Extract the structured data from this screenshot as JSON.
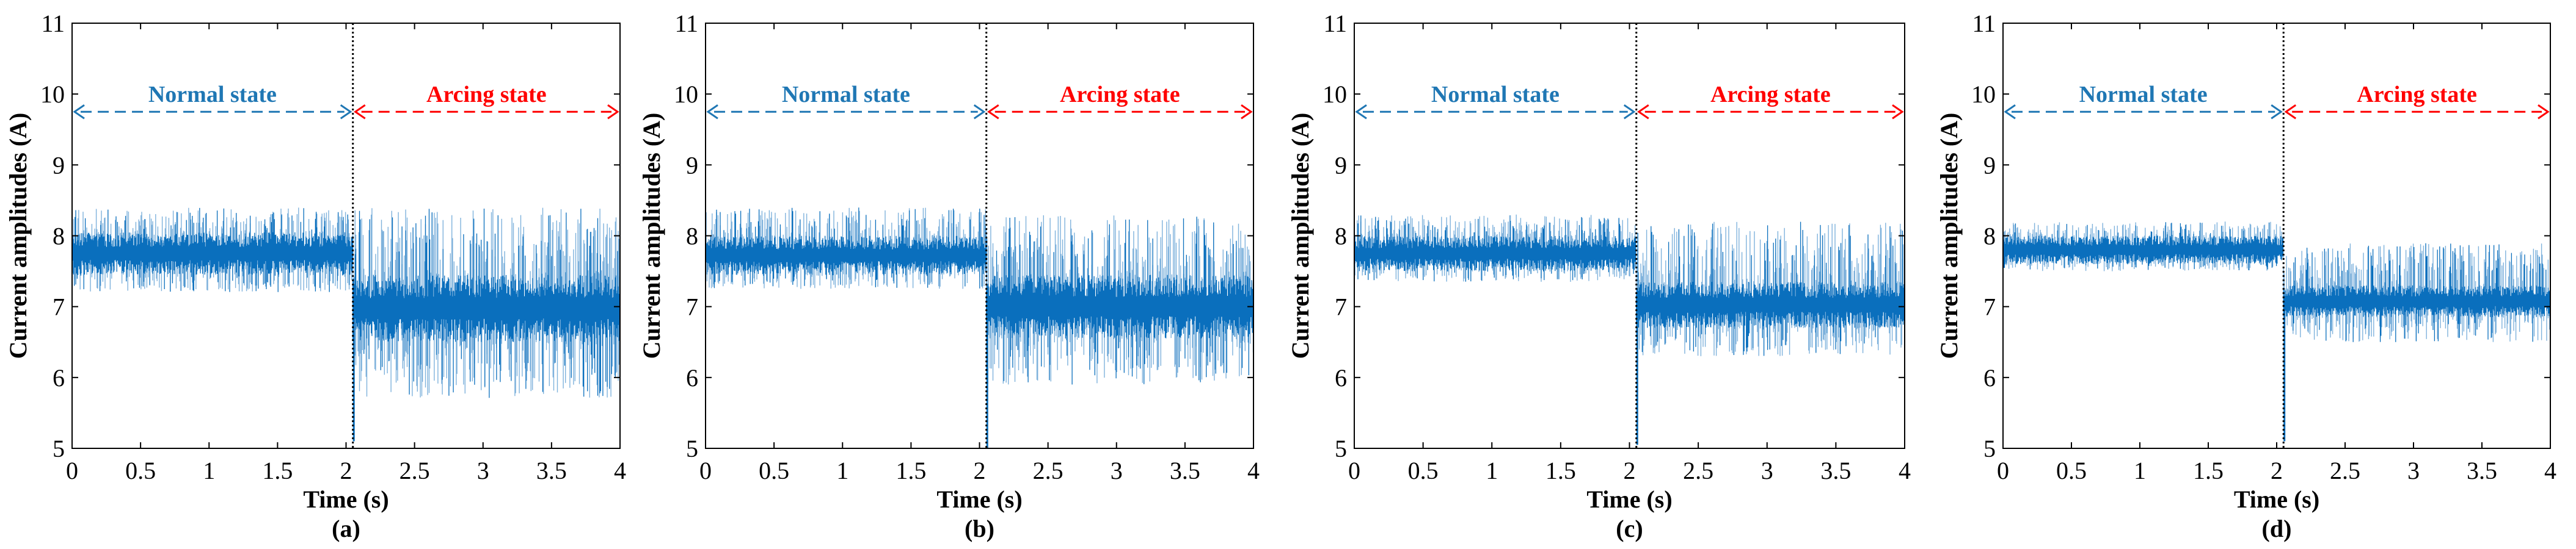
{
  "colors": {
    "signal": "#0a6fbd",
    "signal_light": "#7fb2dc",
    "normal_annotation": "#1f77b4",
    "arcing_annotation": "#ff0000",
    "divider": "#000000",
    "axis": "#000000"
  },
  "chart_data": [
    {
      "type": "line",
      "panel_label": "(a)",
      "xlabel": "Time (s)",
      "ylabel": "Current amplitudes (A)",
      "xlim": [
        0,
        4
      ],
      "ylim": [
        5,
        11
      ],
      "xticks": [
        0,
        0.5,
        1,
        1.5,
        2,
        2.5,
        3,
        3.5,
        4
      ],
      "xtick_labels": [
        "0",
        "0.5",
        "1",
        "1.5",
        "2",
        "2.5",
        "3",
        "3.5",
        "4"
      ],
      "yticks": [
        5,
        6,
        7,
        8,
        9,
        10,
        11
      ],
      "ytick_labels": [
        "5",
        "6",
        "7",
        "8",
        "9",
        "10",
        "11"
      ],
      "grid": false,
      "transition_time": 2.05,
      "annotations": [
        {
          "text": "Normal state",
          "x_start": 0,
          "x_end": 2.05,
          "y": 9.75,
          "color": "#1f77b4"
        },
        {
          "text": "Arcing state",
          "x_start": 2.05,
          "x_end": 4,
          "y": 9.75,
          "color": "#ff0000"
        }
      ],
      "series": [
        {
          "segment": "normal",
          "x_range": [
            0,
            2.05
          ],
          "center": 7.75,
          "core_band": [
            7.45,
            8.05
          ],
          "envelope": [
            7.2,
            8.4
          ]
        },
        {
          "segment": "arcing",
          "x_range": [
            2.05,
            4
          ],
          "center": 7.0,
          "core_band": [
            6.5,
            7.45
          ],
          "envelope": [
            5.7,
            8.4
          ],
          "dip_at_transition": 5.1
        }
      ]
    },
    {
      "type": "line",
      "panel_label": "(b)",
      "xlabel": "Time (s)",
      "ylabel": "Current amplitudes (A)",
      "xlim": [
        0,
        4
      ],
      "ylim": [
        5,
        11
      ],
      "xticks": [
        0,
        0.5,
        1,
        1.5,
        2,
        2.5,
        3,
        3.5,
        4
      ],
      "xtick_labels": [
        "0",
        "0.5",
        "1",
        "1.5",
        "2",
        "2.5",
        "3",
        "3.5",
        "4"
      ],
      "yticks": [
        5,
        6,
        7,
        8,
        9,
        10,
        11
      ],
      "ytick_labels": [
        "5",
        "6",
        "7",
        "8",
        "9",
        "10",
        "11"
      ],
      "grid": false,
      "transition_time": 2.05,
      "annotations": [
        {
          "text": "Normal state",
          "x_start": 0,
          "x_end": 2.05,
          "y": 9.75,
          "color": "#1f77b4"
        },
        {
          "text": "Arcing state",
          "x_start": 2.05,
          "x_end": 4,
          "y": 9.75,
          "color": "#ff0000"
        }
      ],
      "series": [
        {
          "segment": "normal",
          "x_range": [
            0,
            2.05
          ],
          "center": 7.7,
          "core_band": [
            7.45,
            8.0
          ],
          "envelope": [
            7.25,
            8.4
          ]
        },
        {
          "segment": "arcing",
          "x_range": [
            2.05,
            4
          ],
          "center": 7.0,
          "core_band": [
            6.55,
            7.45
          ],
          "envelope": [
            5.9,
            8.3
          ],
          "dip_at_transition": 5.0
        }
      ]
    },
    {
      "type": "line",
      "panel_label": "(c)",
      "xlabel": "Time (s)",
      "ylabel": "Current amplitudes (A)",
      "xlim": [
        0,
        4
      ],
      "ylim": [
        5,
        11
      ],
      "xticks": [
        0,
        0.5,
        1,
        1.5,
        2,
        2.5,
        3,
        3.5,
        4
      ],
      "xtick_labels": [
        "0",
        "0.5",
        "1",
        "1.5",
        "2",
        "2.5",
        "3",
        "3.5",
        "4"
      ],
      "yticks": [
        5,
        6,
        7,
        8,
        9,
        10,
        11
      ],
      "ytick_labels": [
        "5",
        "6",
        "7",
        "8",
        "9",
        "10",
        "11"
      ],
      "grid": false,
      "transition_time": 2.05,
      "annotations": [
        {
          "text": "Normal state",
          "x_start": 0,
          "x_end": 2.05,
          "y": 9.75,
          "color": "#1f77b4"
        },
        {
          "text": "Arcing state",
          "x_start": 2.05,
          "x_end": 4,
          "y": 9.75,
          "color": "#ff0000"
        }
      ],
      "series": [
        {
          "segment": "normal",
          "x_range": [
            0,
            2.05
          ],
          "center": 7.75,
          "core_band": [
            7.5,
            8.0
          ],
          "envelope": [
            7.35,
            8.3
          ]
        },
        {
          "segment": "arcing",
          "x_range": [
            2.05,
            4
          ],
          "center": 7.0,
          "core_band": [
            6.7,
            7.35
          ],
          "envelope": [
            6.3,
            8.2
          ],
          "dip_at_transition": 5.05
        }
      ]
    },
    {
      "type": "line",
      "panel_label": "(d)",
      "xlabel": "Time (s)",
      "ylabel": "Current amplitudes (A)",
      "xlim": [
        0,
        4
      ],
      "ylim": [
        5,
        11
      ],
      "xticks": [
        0,
        0.5,
        1,
        1.5,
        2,
        2.5,
        3,
        3.5,
        4
      ],
      "xtick_labels": [
        "0",
        "0.5",
        "1",
        "1.5",
        "2",
        "2.5",
        "3",
        "3.5",
        "4"
      ],
      "yticks": [
        5,
        6,
        7,
        8,
        9,
        10,
        11
      ],
      "ytick_labels": [
        "5",
        "6",
        "7",
        "8",
        "9",
        "10",
        "11"
      ],
      "grid": false,
      "transition_time": 2.05,
      "annotations": [
        {
          "text": "Normal state",
          "x_start": 0,
          "x_end": 2.05,
          "y": 9.75,
          "color": "#1f77b4"
        },
        {
          "text": "Arcing state",
          "x_start": 2.05,
          "x_end": 4,
          "y": 9.75,
          "color": "#ff0000"
        }
      ],
      "series": [
        {
          "segment": "normal",
          "x_range": [
            0,
            2.05
          ],
          "center": 7.8,
          "core_band": [
            7.6,
            8.0
          ],
          "envelope": [
            7.5,
            8.2
          ]
        },
        {
          "segment": "arcing",
          "x_range": [
            2.05,
            4
          ],
          "center": 7.05,
          "core_band": [
            6.85,
            7.3
          ],
          "envelope": [
            6.5,
            7.9
          ],
          "dip_at_transition": 5.1
        }
      ]
    }
  ]
}
